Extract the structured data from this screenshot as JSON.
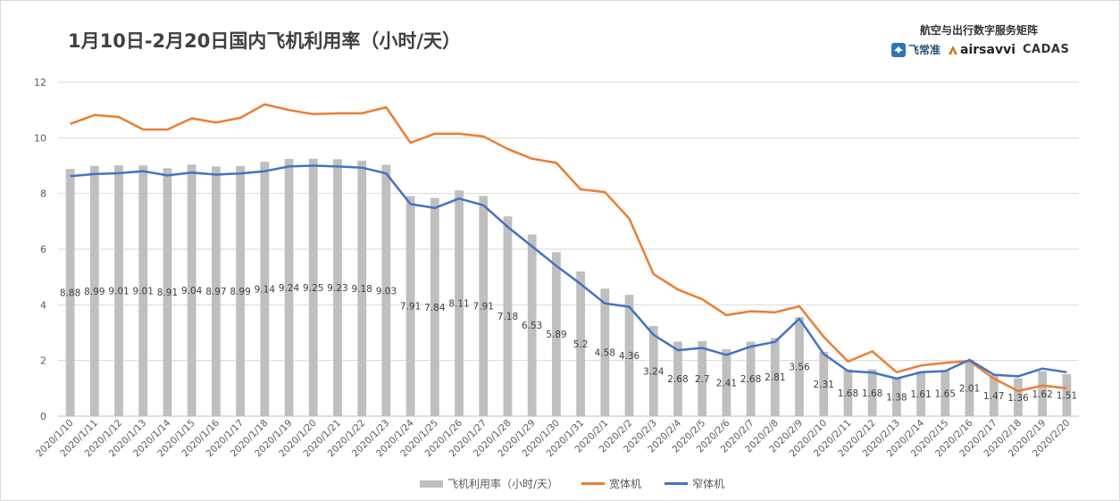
{
  "chart_data": {
    "type": "bar",
    "title": "1月10日-2月20日国内飞机利用率（小时/天）",
    "brand": {
      "heading": "航空与出行数字服务矩阵",
      "logos": [
        "飞常准",
        "airsavvi",
        "CADAS"
      ]
    },
    "categories": [
      "2020/1/10",
      "2020/1/11",
      "2020/1/12",
      "2020/1/13",
      "2020/1/14",
      "2020/1/15",
      "2020/1/16",
      "2020/1/17",
      "2020/1/18",
      "2020/1/19",
      "2020/1/20",
      "2020/1/21",
      "2020/1/22",
      "2020/1/23",
      "2020/1/24",
      "2020/1/25",
      "2020/1/26",
      "2020/1/27",
      "2020/1/28",
      "2020/1/29",
      "2020/1/30",
      "2020/1/31",
      "2020/2/1",
      "2020/2/2",
      "2020/2/3",
      "2020/2/4",
      "2020/2/5",
      "2020/2/6",
      "2020/2/7",
      "2020/2/8",
      "2020/2/9",
      "2020/2/10",
      "2020/2/11",
      "2020/2/12",
      "2020/2/13",
      "2020/2/14",
      "2020/2/15",
      "2020/2/16",
      "2020/2/17",
      "2020/2/18",
      "2020/2/19",
      "2020/2/20"
    ],
    "series": [
      {
        "name": "飞机利用率（小时/天）",
        "kind": "bar",
        "color": "#bfbfbf",
        "labels": true,
        "values": [
          8.88,
          8.99,
          9.01,
          9.01,
          8.91,
          9.04,
          8.97,
          8.99,
          9.14,
          9.24,
          9.25,
          9.23,
          9.18,
          9.03,
          7.91,
          7.84,
          8.11,
          7.91,
          7.18,
          6.53,
          5.89,
          5.2,
          4.58,
          4.36,
          3.24,
          2.68,
          2.7,
          2.41,
          2.68,
          2.81,
          3.56,
          2.31,
          1.68,
          1.68,
          1.38,
          1.61,
          1.65,
          2.01,
          1.47,
          1.36,
          1.62,
          1.51
        ]
      },
      {
        "name": "宽体机",
        "kind": "line",
        "color": "#ed7d31",
        "values": [
          10.5,
          10.82,
          10.75,
          10.3,
          10.3,
          10.7,
          10.55,
          10.72,
          11.2,
          11.0,
          10.85,
          10.88,
          10.88,
          11.1,
          9.82,
          10.15,
          10.15,
          10.05,
          9.6,
          9.25,
          9.1,
          8.15,
          8.05,
          7.1,
          5.1,
          4.55,
          4.2,
          3.63,
          3.77,
          3.73,
          3.95,
          2.85,
          1.96,
          2.33,
          1.58,
          1.82,
          1.92,
          1.98,
          1.35,
          0.9,
          1.1,
          1.0
        ]
      },
      {
        "name": "窄体机",
        "kind": "line",
        "color": "#4472c4",
        "values": [
          8.62,
          8.7,
          8.73,
          8.8,
          8.65,
          8.75,
          8.68,
          8.72,
          8.8,
          8.97,
          9.0,
          8.97,
          8.93,
          8.72,
          7.62,
          7.48,
          7.82,
          7.58,
          6.8,
          6.1,
          5.4,
          4.75,
          4.05,
          3.93,
          2.92,
          2.37,
          2.45,
          2.2,
          2.5,
          2.67,
          3.5,
          2.23,
          1.62,
          1.57,
          1.35,
          1.58,
          1.62,
          2.02,
          1.49,
          1.43,
          1.71,
          1.58
        ]
      }
    ],
    "ylim": [
      0,
      12
    ],
    "yticks": [
      0,
      2,
      4,
      6,
      8,
      10,
      12
    ],
    "grid": true,
    "legend_position": "bottom-center"
  }
}
